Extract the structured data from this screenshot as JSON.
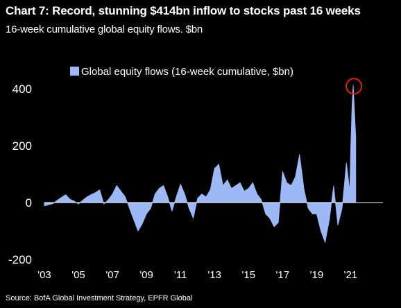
{
  "header": {
    "title": "Chart 7: Record, stunning $414bn inflow to stocks past 16 weeks",
    "subtitle": "16-week cumulative global equity flows. $bn"
  },
  "footer": {
    "source": "Source:  BofA Global Investment Strategy, EPFR Global"
  },
  "colors": {
    "background": "#000000",
    "series": "#9DB9F5",
    "highlight": "#E0201B",
    "axis": "#ffffff"
  },
  "chart_data": {
    "type": "area",
    "legend": {
      "label": "Global equity flows (16-week cumulative, $bn)",
      "position": "top-center"
    },
    "grid": false,
    "ylim": [
      -200,
      450
    ],
    "yticks": [
      -200,
      0,
      200,
      400
    ],
    "ytick_labels": [
      "-200",
      "0",
      "200",
      "400"
    ],
    "xlim": [
      2003.0,
      2022.9
    ],
    "xticks": [
      2003,
      2005,
      2007,
      2009,
      2011,
      2013,
      2015,
      2017,
      2019,
      2021
    ],
    "xtick_labels": [
      "'03",
      "'05",
      "'07",
      "'09",
      "'11",
      "'13",
      "'15",
      "'17",
      "'19",
      "'21"
    ],
    "annotations": [
      {
        "type": "circle",
        "x": 2021.15,
        "y": 414
      }
    ],
    "series": [
      {
        "name": "Global equity flows (16-week cumulative, $bn)",
        "points": [
          [
            2003.0,
            -12
          ],
          [
            2003.25,
            -8
          ],
          [
            2003.5,
            -4
          ],
          [
            2003.75,
            8
          ],
          [
            2004.0,
            18
          ],
          [
            2004.25,
            28
          ],
          [
            2004.5,
            12
          ],
          [
            2004.75,
            5
          ],
          [
            2005.0,
            -5
          ],
          [
            2005.25,
            8
          ],
          [
            2005.5,
            20
          ],
          [
            2005.75,
            28
          ],
          [
            2006.0,
            35
          ],
          [
            2006.25,
            45
          ],
          [
            2006.5,
            -5
          ],
          [
            2006.75,
            10
          ],
          [
            2007.0,
            30
          ],
          [
            2007.25,
            60
          ],
          [
            2007.5,
            40
          ],
          [
            2007.75,
            20
          ],
          [
            2008.0,
            -20
          ],
          [
            2008.25,
            -60
          ],
          [
            2008.5,
            -100
          ],
          [
            2008.75,
            -75
          ],
          [
            2009.0,
            -40
          ],
          [
            2009.25,
            -20
          ],
          [
            2009.5,
            30
          ],
          [
            2009.75,
            50
          ],
          [
            2010.0,
            60
          ],
          [
            2010.25,
            20
          ],
          [
            2010.5,
            -30
          ],
          [
            2010.75,
            20
          ],
          [
            2011.0,
            65
          ],
          [
            2011.25,
            30
          ],
          [
            2011.5,
            -20
          ],
          [
            2011.75,
            -55
          ],
          [
            2012.0,
            15
          ],
          [
            2012.25,
            30
          ],
          [
            2012.5,
            20
          ],
          [
            2012.75,
            45
          ],
          [
            2013.0,
            120
          ],
          [
            2013.25,
            135
          ],
          [
            2013.5,
            60
          ],
          [
            2013.75,
            80
          ],
          [
            2014.0,
            50
          ],
          [
            2014.25,
            60
          ],
          [
            2014.5,
            70
          ],
          [
            2014.75,
            40
          ],
          [
            2015.0,
            50
          ],
          [
            2015.25,
            70
          ],
          [
            2015.5,
            30
          ],
          [
            2015.75,
            10
          ],
          [
            2016.0,
            -40
          ],
          [
            2016.25,
            -55
          ],
          [
            2016.5,
            -85
          ],
          [
            2016.75,
            -70
          ],
          [
            2017.0,
            110
          ],
          [
            2017.25,
            70
          ],
          [
            2017.5,
            60
          ],
          [
            2017.75,
            90
          ],
          [
            2018.0,
            170
          ],
          [
            2018.25,
            50
          ],
          [
            2018.5,
            -20
          ],
          [
            2018.75,
            -40
          ],
          [
            2019.0,
            -40
          ],
          [
            2019.25,
            -100
          ],
          [
            2019.5,
            -140
          ],
          [
            2019.75,
            -60
          ],
          [
            2020.0,
            60
          ],
          [
            2020.25,
            -80
          ],
          [
            2020.5,
            -20
          ],
          [
            2020.75,
            140
          ],
          [
            2020.95,
            40
          ],
          [
            2021.0,
            180
          ],
          [
            2021.08,
            340
          ],
          [
            2021.15,
            414
          ],
          [
            2021.3,
            230
          ]
        ]
      }
    ]
  }
}
